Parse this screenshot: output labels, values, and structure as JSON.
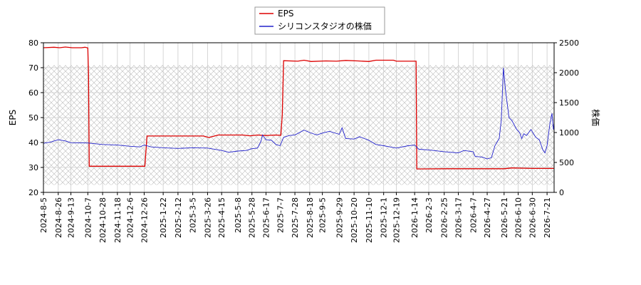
{
  "chart_data": {
    "type": "line",
    "legend_position": "top-center",
    "grid": true,
    "band_range": [
      0.05,
      0.85
    ],
    "x_ticks": [
      "2024-8-5",
      "2024-8-26",
      "2024-9-13",
      "2024-10-7",
      "2024-10-28",
      "2024-11-18",
      "2024-12-6",
      "2024-12-26",
      "2025-1-22",
      "2025-2-12",
      "2025-3-5",
      "2025-3-26",
      "2025-4-15",
      "2025-5-8",
      "2025-5-28",
      "2025-6-17",
      "2025-7-7",
      "2025-7-28",
      "2025-8-18",
      "2025-9-5",
      "2025-9-29",
      "2025-10-20",
      "2025-11-10",
      "2025-12-1",
      "2025-12-19",
      "2026-1-14",
      "2026-2-3",
      "2026-2-25",
      "2026-3-17",
      "2026-4-7",
      "2026-4-27",
      "2026-5-21",
      "2026-6-10",
      "2026-6-30",
      "2026-7-21"
    ],
    "y_left": {
      "label": "EPS",
      "min": 20,
      "max": 80,
      "ticks": [
        20,
        30,
        40,
        50,
        60,
        70,
        80
      ]
    },
    "y_right": {
      "label": "株価",
      "min": 0,
      "max": 2500,
      "ticks": [
        0,
        500,
        1000,
        1500,
        2000,
        2500
      ]
    },
    "series": [
      {
        "name": "EPS",
        "color": "#dd0000",
        "axis": "left",
        "points": [
          [
            "2024-8-5",
            78.0
          ],
          [
            "2024-8-20",
            78.2
          ],
          [
            "2024-8-28",
            78.0
          ],
          [
            "2024-9-5",
            78.3
          ],
          [
            "2024-9-15",
            78.0
          ],
          [
            "2024-9-28",
            78.0
          ],
          [
            "2024-10-3",
            78.2
          ],
          [
            "2024-10-7",
            77.9
          ],
          [
            "2024-10-8",
            67.0
          ],
          [
            "2024-10-9",
            30.5
          ],
          [
            "2024-12-26",
            30.5
          ],
          [
            "2024-12-27",
            30.5
          ],
          [
            "2024-12-30",
            42.6
          ],
          [
            "2025-3-20",
            42.6
          ],
          [
            "2025-3-28",
            42.0
          ],
          [
            "2025-4-10",
            43.0
          ],
          [
            "2025-5-15",
            43.0
          ],
          [
            "2025-5-25",
            42.7
          ],
          [
            "2025-6-5",
            43.0
          ],
          [
            "2025-6-17",
            42.8
          ],
          [
            "2025-7-1",
            43.0
          ],
          [
            "2025-7-8",
            42.9
          ],
          [
            "2025-7-10",
            51.0
          ],
          [
            "2025-7-12",
            72.8
          ],
          [
            "2025-8-1",
            72.6
          ],
          [
            "2025-8-10",
            73.0
          ],
          [
            "2025-8-20",
            72.5
          ],
          [
            "2025-9-10",
            72.7
          ],
          [
            "2025-9-25",
            72.6
          ],
          [
            "2025-10-8",
            72.9
          ],
          [
            "2025-10-25",
            72.7
          ],
          [
            "2025-11-10",
            72.5
          ],
          [
            "2025-11-20",
            73.0
          ],
          [
            "2025-12-15",
            73.0
          ],
          [
            "2025-12-19",
            72.6
          ],
          [
            "2026-1-16",
            72.6
          ],
          [
            "2026-1-17",
            29.4
          ],
          [
            "2026-3-1",
            29.5
          ],
          [
            "2026-5-21",
            29.5
          ],
          [
            "2026-6-1",
            29.8
          ],
          [
            "2026-7-1",
            29.6
          ],
          [
            "2026-7-31",
            29.6
          ]
        ]
      },
      {
        "name": "シリコンスタジオの株価",
        "color": "#2222cc",
        "axis": "right",
        "points": [
          [
            "2024-8-5",
            820
          ],
          [
            "2024-8-15",
            840
          ],
          [
            "2024-8-26",
            880
          ],
          [
            "2024-9-5",
            860
          ],
          [
            "2024-9-13",
            830
          ],
          [
            "2024-10-7",
            825
          ],
          [
            "2024-10-28",
            800
          ],
          [
            "2024-11-18",
            790
          ],
          [
            "2024-12-6",
            770
          ],
          [
            "2024-12-20",
            760
          ],
          [
            "2024-12-26",
            790
          ],
          [
            "2025-1-5",
            760
          ],
          [
            "2025-1-22",
            745
          ],
          [
            "2025-2-12",
            735
          ],
          [
            "2025-3-5",
            745
          ],
          [
            "2025-3-26",
            740
          ],
          [
            "2025-4-15",
            700
          ],
          [
            "2025-4-25",
            670
          ],
          [
            "2025-5-8",
            690
          ],
          [
            "2025-5-20",
            700
          ],
          [
            "2025-5-28",
            730
          ],
          [
            "2025-6-5",
            740
          ],
          [
            "2025-6-10",
            860
          ],
          [
            "2025-6-12",
            960
          ],
          [
            "2025-6-17",
            880
          ],
          [
            "2025-6-25",
            870
          ],
          [
            "2025-7-1",
            800
          ],
          [
            "2025-7-7",
            780
          ],
          [
            "2025-7-12",
            920
          ],
          [
            "2025-7-20",
            950
          ],
          [
            "2025-7-28",
            960
          ],
          [
            "2025-8-10",
            1040
          ],
          [
            "2025-8-18",
            1000
          ],
          [
            "2025-8-28",
            960
          ],
          [
            "2025-9-5",
            990
          ],
          [
            "2025-9-15",
            1020
          ],
          [
            "2025-9-29",
            970
          ],
          [
            "2025-10-3",
            1080
          ],
          [
            "2025-10-8",
            900
          ],
          [
            "2025-10-20",
            890
          ],
          [
            "2025-10-28",
            930
          ],
          [
            "2025-11-10",
            870
          ],
          [
            "2025-11-20",
            800
          ],
          [
            "2025-12-1",
            780
          ],
          [
            "2025-12-10",
            760
          ],
          [
            "2025-12-19",
            740
          ],
          [
            "2026-1-5",
            780
          ],
          [
            "2026-1-14",
            790
          ],
          [
            "2026-1-20",
            720
          ],
          [
            "2026-2-3",
            710
          ],
          [
            "2026-2-25",
            680
          ],
          [
            "2026-3-17",
            660
          ],
          [
            "2026-3-25",
            700
          ],
          [
            "2026-4-7",
            680
          ],
          [
            "2026-4-10",
            600
          ],
          [
            "2026-4-20",
            590
          ],
          [
            "2026-4-27",
            560
          ],
          [
            "2026-5-3",
            580
          ],
          [
            "2026-5-8",
            780
          ],
          [
            "2026-5-14",
            900
          ],
          [
            "2026-5-17",
            1200
          ],
          [
            "2026-5-20",
            2080
          ],
          [
            "2026-5-23",
            1700
          ],
          [
            "2026-5-28",
            1250
          ],
          [
            "2026-6-1",
            1200
          ],
          [
            "2026-6-8",
            1050
          ],
          [
            "2026-6-12",
            1000
          ],
          [
            "2026-6-15",
            900
          ],
          [
            "2026-6-18",
            980
          ],
          [
            "2026-6-22",
            950
          ],
          [
            "2026-6-28",
            1050
          ],
          [
            "2026-7-5",
            920
          ],
          [
            "2026-7-10",
            880
          ],
          [
            "2026-7-15",
            710
          ],
          [
            "2026-7-18",
            660
          ],
          [
            "2026-7-21",
            780
          ],
          [
            "2026-7-25",
            1150
          ],
          [
            "2026-7-28",
            1320
          ],
          [
            "2026-7-30",
            1050
          ],
          [
            "2026-7-31",
            1150
          ]
        ]
      }
    ]
  }
}
